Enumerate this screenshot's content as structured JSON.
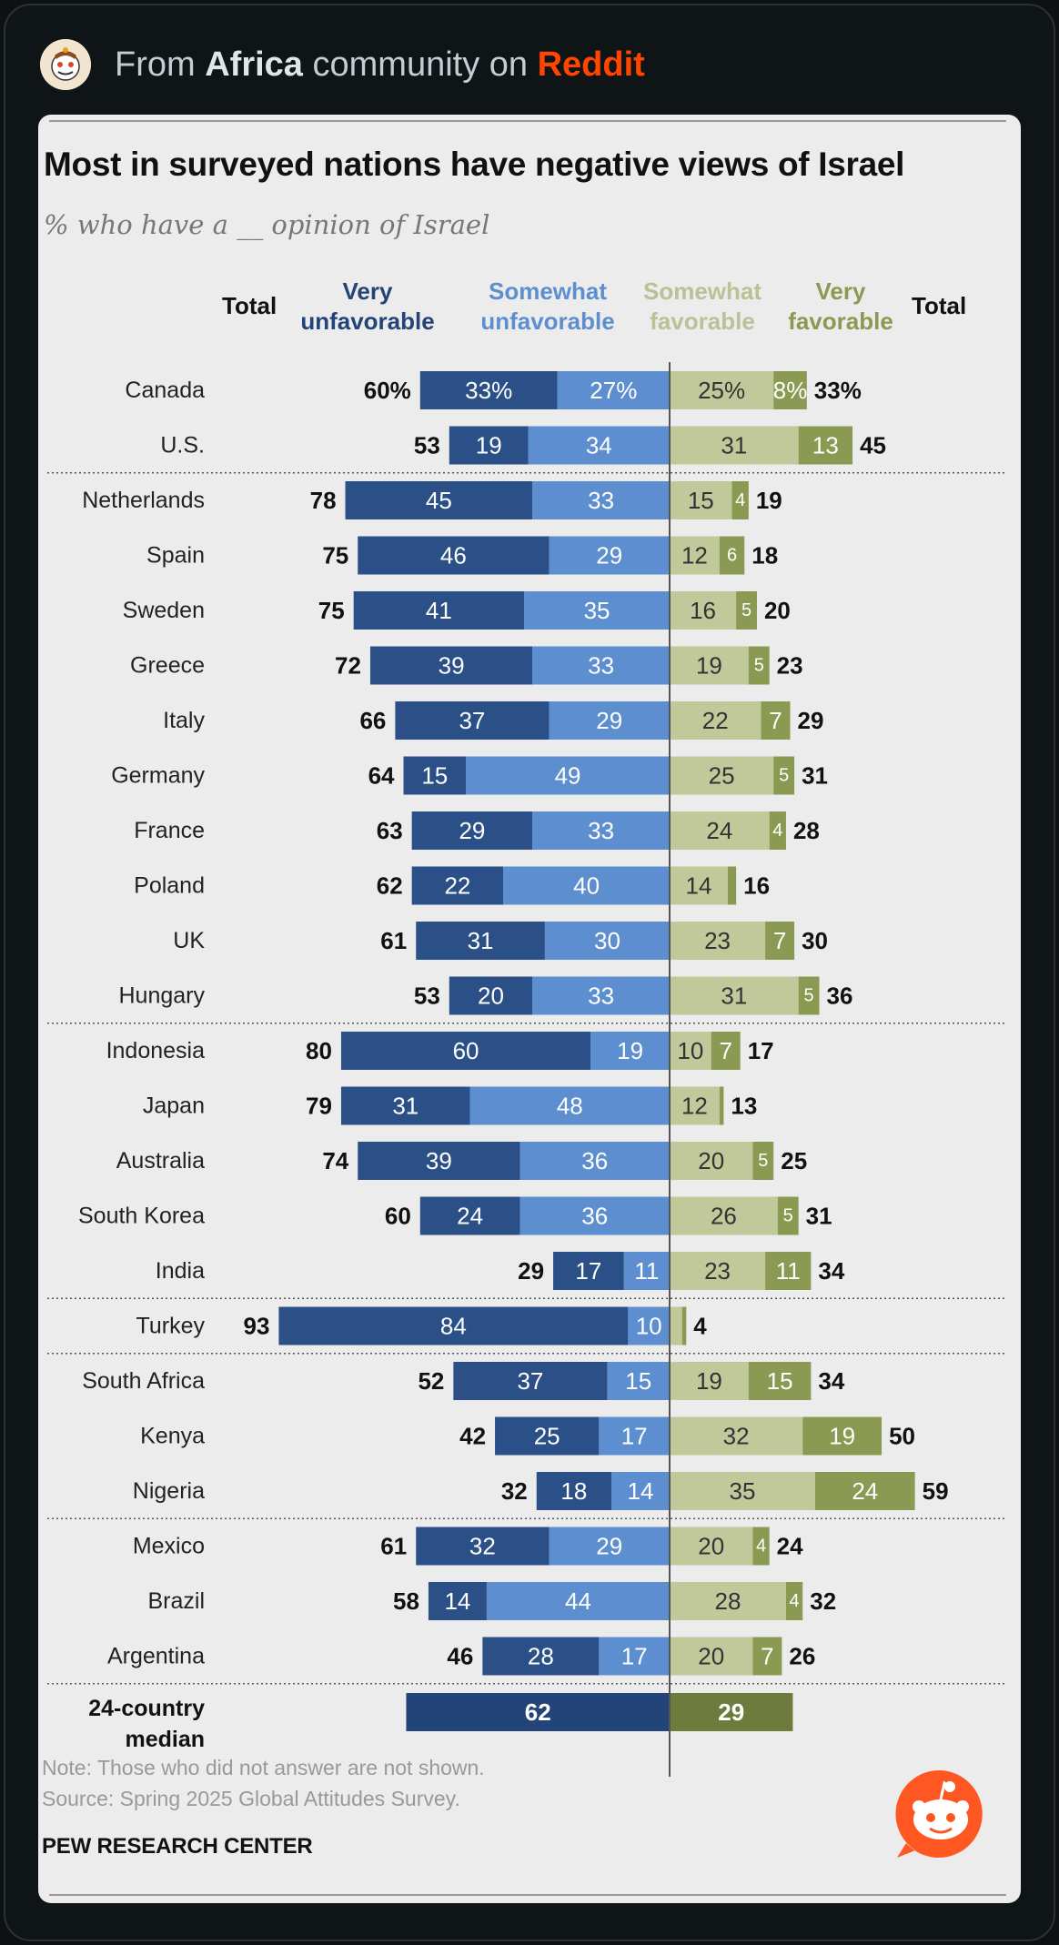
{
  "header": {
    "prefix": "From",
    "community": "Africa",
    "middle": "community on",
    "platform": "Reddit"
  },
  "chart_data": {
    "type": "bar",
    "title": "Most in surveyed nations have negative views of Israel",
    "subtitle": "% who have a __ opinion of Israel",
    "column_headers": {
      "total_left": "Total",
      "very_unfavorable": [
        "Very",
        "unfavorable"
      ],
      "somewhat_unfavorable": [
        "Somewhat",
        "unfavorable"
      ],
      "somewhat_favorable": [
        "Somewhat",
        "favorable"
      ],
      "very_favorable": [
        "Very",
        "favorable"
      ],
      "total_right": "Total"
    },
    "colors": {
      "very_unfavorable": "#2b5087",
      "somewhat_unfavorable": "#5d8fd0",
      "somewhat_favorable": "#c1c99a",
      "very_favorable": "#8a9a52",
      "median_unfavorable": "#234478",
      "median_favorable": "#6d7c3c"
    },
    "rows": [
      {
        "country": "Canada",
        "very_unfav": 33,
        "somewhat_unfav": 27,
        "total_unfav": 60,
        "somewhat_fav": 25,
        "very_fav": 8,
        "total_fav": 33,
        "labels": [
          "60%",
          "33%",
          "27%",
          "25%",
          "8%",
          "33%"
        ]
      },
      {
        "country": "U.S.",
        "very_unfav": 19,
        "somewhat_unfav": 34,
        "total_unfav": 53,
        "somewhat_fav": 31,
        "very_fav": 13,
        "total_fav": 45
      },
      {
        "country": "Netherlands",
        "very_unfav": 45,
        "somewhat_unfav": 33,
        "total_unfav": 78,
        "somewhat_fav": 15,
        "very_fav": 4,
        "total_fav": 19
      },
      {
        "country": "Spain",
        "very_unfav": 46,
        "somewhat_unfav": 29,
        "total_unfav": 75,
        "somewhat_fav": 12,
        "very_fav": 6,
        "total_fav": 18
      },
      {
        "country": "Sweden",
        "very_unfav": 41,
        "somewhat_unfav": 35,
        "total_unfav": 75,
        "somewhat_fav": 16,
        "very_fav": 5,
        "total_fav": 20
      },
      {
        "country": "Greece",
        "very_unfav": 39,
        "somewhat_unfav": 33,
        "total_unfav": 72,
        "somewhat_fav": 19,
        "very_fav": 5,
        "total_fav": 23
      },
      {
        "country": "Italy",
        "very_unfav": 37,
        "somewhat_unfav": 29,
        "total_unfav": 66,
        "somewhat_fav": 22,
        "very_fav": 7,
        "total_fav": 29
      },
      {
        "country": "Germany",
        "very_unfav": 15,
        "somewhat_unfav": 49,
        "total_unfav": 64,
        "somewhat_fav": 25,
        "very_fav": 5,
        "total_fav": 31
      },
      {
        "country": "France",
        "very_unfav": 29,
        "somewhat_unfav": 33,
        "total_unfav": 63,
        "somewhat_fav": 24,
        "very_fav": 4,
        "total_fav": 28
      },
      {
        "country": "Poland",
        "very_unfav": 22,
        "somewhat_unfav": 40,
        "total_unfav": 62,
        "somewhat_fav": 14,
        "very_fav": 2,
        "total_fav": 16,
        "hide_very_fav_label": true
      },
      {
        "country": "UK",
        "very_unfav": 31,
        "somewhat_unfav": 30,
        "total_unfav": 61,
        "somewhat_fav": 23,
        "very_fav": 7,
        "total_fav": 30
      },
      {
        "country": "Hungary",
        "very_unfav": 20,
        "somewhat_unfav": 33,
        "total_unfav": 53,
        "somewhat_fav": 31,
        "very_fav": 5,
        "total_fav": 36
      },
      {
        "country": "Indonesia",
        "very_unfav": 60,
        "somewhat_unfav": 19,
        "total_unfav": 80,
        "somewhat_fav": 10,
        "very_fav": 7,
        "total_fav": 17
      },
      {
        "country": "Japan",
        "very_unfav": 31,
        "somewhat_unfav": 48,
        "total_unfav": 79,
        "somewhat_fav": 12,
        "very_fav": 1,
        "total_fav": 13,
        "hide_very_fav_label": true
      },
      {
        "country": "Australia",
        "very_unfav": 39,
        "somewhat_unfav": 36,
        "total_unfav": 74,
        "somewhat_fav": 20,
        "very_fav": 5,
        "total_fav": 25
      },
      {
        "country": "South Korea",
        "very_unfav": 24,
        "somewhat_unfav": 36,
        "total_unfav": 60,
        "somewhat_fav": 26,
        "very_fav": 5,
        "total_fav": 31
      },
      {
        "country": "India",
        "very_unfav": 17,
        "somewhat_unfav": 11,
        "total_unfav": 29,
        "somewhat_fav": 23,
        "very_fav": 11,
        "total_fav": 34
      },
      {
        "country": "Turkey",
        "very_unfav": 84,
        "somewhat_unfav": 10,
        "total_unfav": 93,
        "somewhat_fav": 3,
        "very_fav": 1,
        "total_fav": 4,
        "hide_somewhat_fav_label": true,
        "hide_very_fav_label": true
      },
      {
        "country": "South Africa",
        "very_unfav": 37,
        "somewhat_unfav": 15,
        "total_unfav": 52,
        "somewhat_fav": 19,
        "very_fav": 15,
        "total_fav": 34
      },
      {
        "country": "Kenya",
        "very_unfav": 25,
        "somewhat_unfav": 17,
        "total_unfav": 42,
        "somewhat_fav": 32,
        "very_fav": 19,
        "total_fav": 50
      },
      {
        "country": "Nigeria",
        "very_unfav": 18,
        "somewhat_unfav": 14,
        "total_unfav": 32,
        "somewhat_fav": 35,
        "very_fav": 24,
        "total_fav": 59
      },
      {
        "country": "Mexico",
        "very_unfav": 32,
        "somewhat_unfav": 29,
        "total_unfav": 61,
        "somewhat_fav": 20,
        "very_fav": 4,
        "total_fav": 24
      },
      {
        "country": "Brazil",
        "very_unfav": 14,
        "somewhat_unfav": 44,
        "total_unfav": 58,
        "somewhat_fav": 28,
        "very_fav": 4,
        "total_fav": 32
      },
      {
        "country": "Argentina",
        "very_unfav": 28,
        "somewhat_unfav": 17,
        "total_unfav": 46,
        "somewhat_fav": 20,
        "very_fav": 7,
        "total_fav": 26
      }
    ],
    "group_breaks_after": [
      1,
      11,
      16,
      17,
      20,
      23
    ],
    "median": {
      "label": [
        "24-country",
        "median"
      ],
      "unfavorable": 62,
      "favorable": 29
    }
  },
  "footer": {
    "note": "Note: Those who did not answer are not shown.",
    "source": "Source: Spring 2025 Global Attitudes Survey.",
    "org": "PEW RESEARCH CENTER"
  }
}
